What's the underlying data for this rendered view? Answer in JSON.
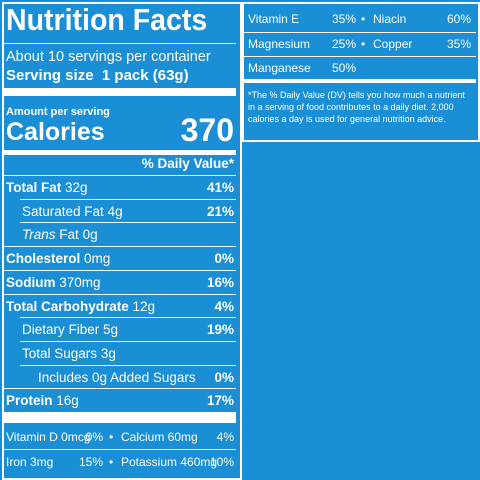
{
  "header": {
    "title": "Nutrition Facts",
    "servings": "About 10 servings per container",
    "serving_label": "Serving size",
    "serving_amount": "1 pack (63g)"
  },
  "calories": {
    "amount_label": "Amount per serving",
    "label": "Calories",
    "value": "370"
  },
  "dv_header": "% Daily Value*",
  "rows": [
    {
      "name": "Total Fat",
      "amount": "32g",
      "dv": "41%"
    },
    {
      "name": "Saturated Fat",
      "amount": "4g",
      "dv": "21%"
    },
    {
      "name_italic": "Trans",
      "name": "Fat",
      "amount": "0g"
    },
    {
      "name": "Cholesterol",
      "amount": "0mg",
      "dv": "0%"
    },
    {
      "name": "Sodium",
      "amount": "370mg",
      "dv": "16%"
    },
    {
      "name": "Total Carbohydrate",
      "amount": "12g",
      "dv": "4%"
    },
    {
      "name": "Dietary Fiber",
      "amount": "5g",
      "dv": "19%"
    },
    {
      "name": "Total Sugars",
      "amount": "3g"
    },
    {
      "name": "Includes 0g Added Sugars",
      "dv": "0%"
    },
    {
      "name": "Protein",
      "amount": "16g",
      "dv": "17%"
    }
  ],
  "micros_left": [
    [
      {
        "name": "Vitamin D 0mcg",
        "dv": "0%"
      },
      {
        "name": "Calcium 60mg",
        "dv": "4%"
      }
    ],
    [
      {
        "name": "Iron 3mg",
        "dv": "15%"
      },
      {
        "name": "Potassium 460mg",
        "dv": "10%"
      }
    ]
  ],
  "micros_right": [
    [
      {
        "name": "Vitamin E",
        "dv": "35%"
      },
      {
        "name": "Niacin",
        "dv": "60%"
      }
    ],
    [
      {
        "name": "Magnesium",
        "dv": "25%"
      },
      {
        "name": "Copper",
        "dv": "35%"
      }
    ],
    [
      {
        "name": "Manganese",
        "dv": "50%"
      }
    ]
  ],
  "footnote": "*The % Daily Value (DV) tells you how much a nutrient in a serving of food contributes to a daily diet. 2,000 calories a day is used for general nutrition advice."
}
